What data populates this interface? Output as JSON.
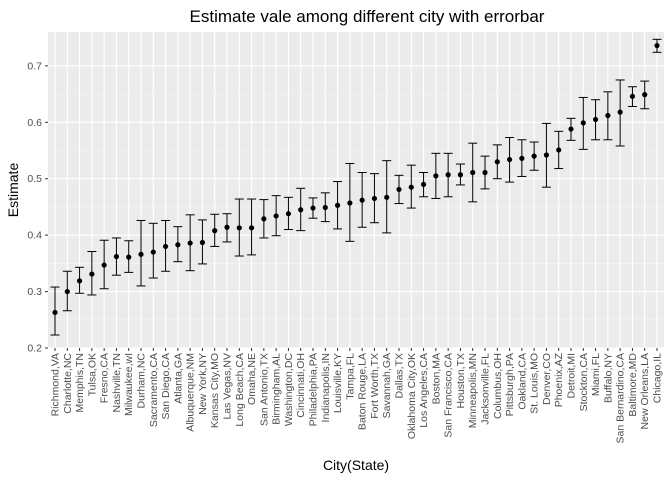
{
  "chart_data": {
    "type": "scatter",
    "title": "Estimate vale among different city with errorbar",
    "xlabel": "City(State)",
    "ylabel": "Estimate",
    "ylim": [
      0.2,
      0.76
    ],
    "yticks": [
      "0.2",
      "0.3",
      "0.4",
      "0.5",
      "0.6",
      "0.7"
    ],
    "grid": true,
    "legend": "none",
    "colors": {
      "panel": "#ebebeb",
      "grid_major": "#ffffff",
      "grid_minor": "#f5f5f5",
      "point": "#000000",
      "errorbar": "#000000"
    },
    "points": [
      {
        "city": "Richmond,VA",
        "estimate": 0.263,
        "low": 0.223,
        "high": 0.308
      },
      {
        "city": "Charlotte,NC",
        "estimate": 0.3,
        "low": 0.266,
        "high": 0.336
      },
      {
        "city": "Memphis,TN",
        "estimate": 0.319,
        "low": 0.297,
        "high": 0.343
      },
      {
        "city": "Tulsa,OK",
        "estimate": 0.331,
        "low": 0.294,
        "high": 0.371
      },
      {
        "city": "Fresno,CA",
        "estimate": 0.347,
        "low": 0.305,
        "high": 0.391
      },
      {
        "city": "Nashville,TN",
        "estimate": 0.362,
        "low": 0.329,
        "high": 0.395
      },
      {
        "city": "Milwaukee,wI",
        "estimate": 0.361,
        "low": 0.334,
        "high": 0.39
      },
      {
        "city": "Durham,NC",
        "estimate": 0.366,
        "low": 0.31,
        "high": 0.426
      },
      {
        "city": "Sacramento,CA",
        "estimate": 0.37,
        "low": 0.324,
        "high": 0.421
      },
      {
        "city": "San Diego,CA",
        "estimate": 0.38,
        "low": 0.336,
        "high": 0.426
      },
      {
        "city": "Atlanta,GA",
        "estimate": 0.383,
        "low": 0.353,
        "high": 0.415
      },
      {
        "city": "Albuquerque,NM",
        "estimate": 0.386,
        "low": 0.337,
        "high": 0.436
      },
      {
        "city": "New York,NY",
        "estimate": 0.387,
        "low": 0.349,
        "high": 0.427
      },
      {
        "city": "Kansas City,MO",
        "estimate": 0.408,
        "low": 0.38,
        "high": 0.437
      },
      {
        "city": "Las Vegas,NV",
        "estimate": 0.414,
        "low": 0.388,
        "high": 0.438
      },
      {
        "city": "Long Beach,CA",
        "estimate": 0.413,
        "low": 0.363,
        "high": 0.464
      },
      {
        "city": "Omaha,NE",
        "estimate": 0.413,
        "low": 0.365,
        "high": 0.464
      },
      {
        "city": "San Antonio,TX",
        "estimate": 0.429,
        "low": 0.395,
        "high": 0.463
      },
      {
        "city": "Birmingham,AL",
        "estimate": 0.434,
        "low": 0.399,
        "high": 0.47
      },
      {
        "city": "Washington,DC",
        "estimate": 0.438,
        "low": 0.41,
        "high": 0.467
      },
      {
        "city": "Cincinnati,OH",
        "estimate": 0.445,
        "low": 0.408,
        "high": 0.483
      },
      {
        "city": "Philadelphia,PA",
        "estimate": 0.448,
        "low": 0.43,
        "high": 0.466
      },
      {
        "city": "Indianapolis,IN",
        "estimate": 0.449,
        "low": 0.424,
        "high": 0.475
      },
      {
        "city": "Louisville,KY",
        "estimate": 0.453,
        "low": 0.411,
        "high": 0.495
      },
      {
        "city": "Tampa,FL",
        "estimate": 0.457,
        "low": 0.389,
        "high": 0.527
      },
      {
        "city": "Baton Rouge,LA",
        "estimate": 0.462,
        "low": 0.414,
        "high": 0.511
      },
      {
        "city": "Fort Worth,TX",
        "estimate": 0.465,
        "low": 0.422,
        "high": 0.509
      },
      {
        "city": "Savannah,GA",
        "estimate": 0.467,
        "low": 0.404,
        "high": 0.532
      },
      {
        "city": "Dallas,TX",
        "estimate": 0.481,
        "low": 0.456,
        "high": 0.506
      },
      {
        "city": "Oklahoma City,OK",
        "estimate": 0.485,
        "low": 0.448,
        "high": 0.524
      },
      {
        "city": "Los Angeles,CA",
        "estimate": 0.49,
        "low": 0.468,
        "high": 0.511
      },
      {
        "city": "Boston,MA",
        "estimate": 0.505,
        "low": 0.465,
        "high": 0.545
      },
      {
        "city": "San Francisco,CA",
        "estimate": 0.507,
        "low": 0.468,
        "high": 0.545
      },
      {
        "city": "Houston,TX",
        "estimate": 0.507,
        "low": 0.489,
        "high": 0.526
      },
      {
        "city": "Minneapolis,MN",
        "estimate": 0.511,
        "low": 0.459,
        "high": 0.563
      },
      {
        "city": "Jacksonville,FL",
        "estimate": 0.511,
        "low": 0.482,
        "high": 0.54
      },
      {
        "city": "Columbus,OH",
        "estimate": 0.53,
        "low": 0.5,
        "high": 0.56
      },
      {
        "city": "Pittsburgh,PA",
        "estimate": 0.534,
        "low": 0.494,
        "high": 0.573
      },
      {
        "city": "Oakland,CA",
        "estimate": 0.536,
        "low": 0.504,
        "high": 0.569
      },
      {
        "city": "St. Louis,MO",
        "estimate": 0.54,
        "low": 0.515,
        "high": 0.565
      },
      {
        "city": "Denver,CO",
        "estimate": 0.542,
        "low": 0.485,
        "high": 0.598
      },
      {
        "city": "Phoenix,AZ",
        "estimate": 0.551,
        "low": 0.518,
        "high": 0.584
      },
      {
        "city": "Detroit,MI",
        "estimate": 0.588,
        "low": 0.568,
        "high": 0.607
      },
      {
        "city": "Stockton,CA",
        "estimate": 0.599,
        "low": 0.552,
        "high": 0.644
      },
      {
        "city": "Miami,FL",
        "estimate": 0.605,
        "low": 0.569,
        "high": 0.64
      },
      {
        "city": "Buffalo,NY",
        "estimate": 0.612,
        "low": 0.569,
        "high": 0.654
      },
      {
        "city": "San Bernardino,CA",
        "estimate": 0.618,
        "low": 0.558,
        "high": 0.675
      },
      {
        "city": "Baltimore,MD",
        "estimate": 0.646,
        "low": 0.628,
        "high": 0.663
      },
      {
        "city": "New Orleans,LA",
        "estimate": 0.649,
        "low": 0.624,
        "high": 0.673
      },
      {
        "city": "Chicago,IL",
        "estimate": 0.736,
        "low": 0.724,
        "high": 0.747
      }
    ]
  }
}
